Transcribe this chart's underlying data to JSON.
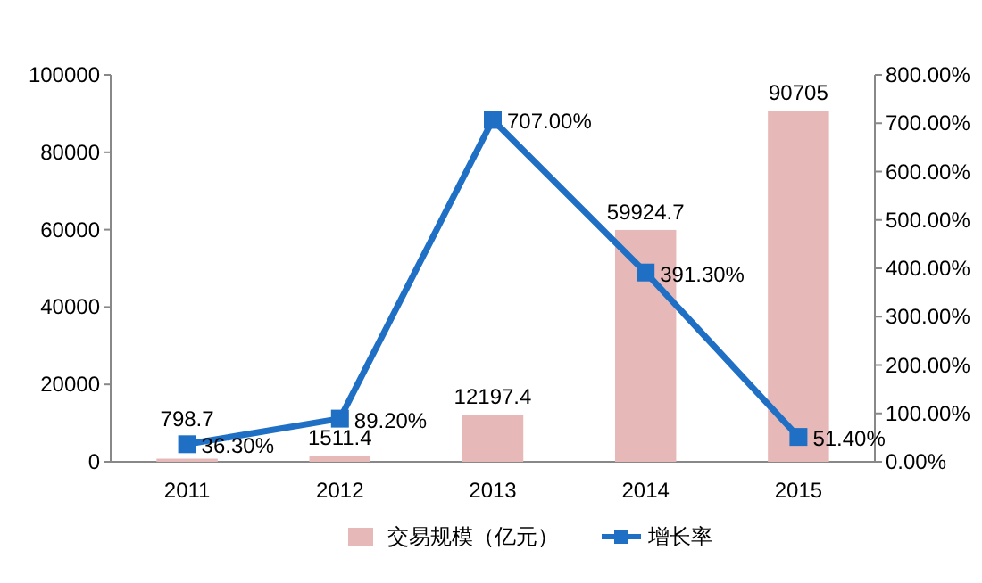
{
  "chart_data": {
    "type": "bar",
    "categories": [
      "2011",
      "2012",
      "2013",
      "2014",
      "2015"
    ],
    "series": [
      {
        "name": "交易规模（亿元）",
        "color": "#e6b9b8",
        "values": [
          798.7,
          1511.4,
          12197.4,
          59924.7,
          90705
        ],
        "value_labels": [
          "798.7",
          "1511.4",
          "12197.4",
          "59924.7",
          "90705"
        ]
      },
      {
        "name": "增长率",
        "type": "line",
        "axis": "y2",
        "color": "#1f6fc5",
        "marker": "square",
        "values": [
          36.3,
          89.2,
          707.0,
          391.3,
          51.4
        ],
        "value_labels": [
          "36.30%",
          "89.20%",
          "707.00%",
          "391.30%",
          "51.40%"
        ]
      }
    ],
    "ylim": [
      0,
      100000
    ],
    "yticks": [
      0,
      20000,
      40000,
      60000,
      80000,
      100000
    ],
    "y2lim": [
      0,
      800
    ],
    "y2ticks": [
      {
        "value": 0,
        "label": "0.00%"
      },
      {
        "value": 100,
        "label": "100.00%"
      },
      {
        "value": 200,
        "label": "200.00%"
      },
      {
        "value": 300,
        "label": "300.00%"
      },
      {
        "value": 400,
        "label": "400.00%"
      },
      {
        "value": 500,
        "label": "500.00%"
      },
      {
        "value": 600,
        "label": "600.00%"
      },
      {
        "value": 700,
        "label": "700.00%"
      },
      {
        "value": 800,
        "label": "800.00%"
      }
    ],
    "grid": false,
    "legend": "bottom"
  }
}
